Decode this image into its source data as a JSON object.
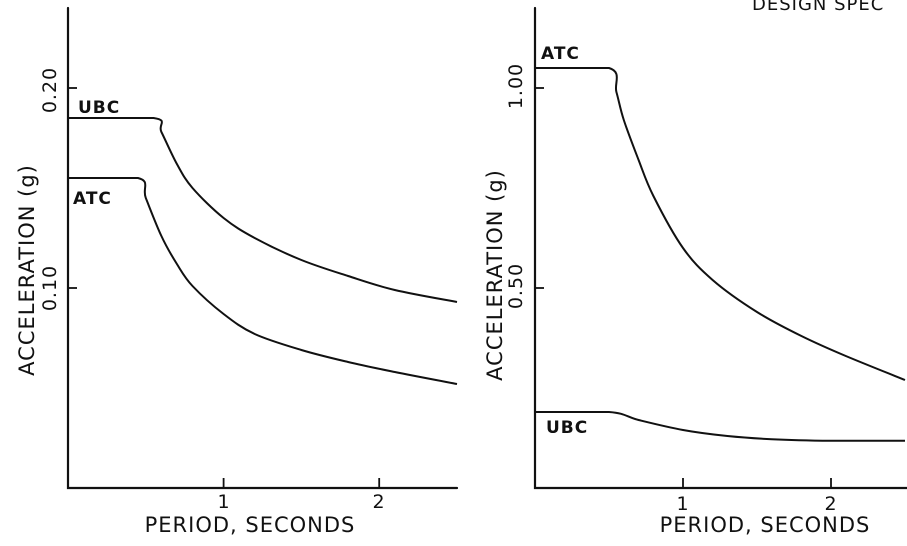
{
  "header_fragment": "DESIGN SPEC",
  "chart_data": [
    {
      "type": "line",
      "xlabel": "PERIOD, SECONDS",
      "ylabel": "ACCELERATION (g)",
      "xlim": [
        0,
        2.5
      ],
      "ylim": [
        0,
        0.25
      ],
      "xticks": [
        {
          "v": 1,
          "label": "1"
        },
        {
          "v": 2,
          "label": "2"
        }
      ],
      "yticks": [
        {
          "v": 0.1,
          "label": "0.10"
        },
        {
          "v": 0.2,
          "label": "0.20"
        }
      ],
      "series": [
        {
          "name": "UBC",
          "x": [
            0,
            0.55,
            0.6,
            0.7,
            0.8,
            1.0,
            1.2,
            1.5,
            1.8,
            2.1,
            2.5
          ],
          "y": [
            0.185,
            0.185,
            0.178,
            0.162,
            0.15,
            0.135,
            0.125,
            0.114,
            0.106,
            0.099,
            0.093
          ]
        },
        {
          "name": "ATC",
          "x": [
            0,
            0.45,
            0.5,
            0.6,
            0.7,
            0.8,
            1.0,
            1.2,
            1.5,
            1.8,
            2.1,
            2.5
          ],
          "y": [
            0.155,
            0.155,
            0.145,
            0.126,
            0.112,
            0.101,
            0.087,
            0.077,
            0.069,
            0.063,
            0.058,
            0.052
          ]
        }
      ]
    },
    {
      "type": "line",
      "xlabel": "PERIOD, SECONDS",
      "ylabel": "ACCELERATION (g)",
      "xlim": [
        0,
        2.5
      ],
      "ylim": [
        0,
        1.2
      ],
      "xticks": [
        {
          "v": 1,
          "label": "1"
        },
        {
          "v": 2,
          "label": "2"
        }
      ],
      "yticks": [
        {
          "v": 0.5,
          "label": "0.50"
        },
        {
          "v": 1.0,
          "label": "1.00"
        }
      ],
      "series": [
        {
          "name": "ATC",
          "x": [
            0,
            0.5,
            0.55,
            0.6,
            0.7,
            0.8,
            1.0,
            1.2,
            1.5,
            1.8,
            2.1,
            2.5
          ],
          "y": [
            1.05,
            1.05,
            0.99,
            0.92,
            0.82,
            0.73,
            0.6,
            0.52,
            0.44,
            0.38,
            0.33,
            0.27
          ]
        },
        {
          "name": "UBC",
          "x": [
            0,
            0.5,
            0.7,
            1.0,
            1.3,
            1.6,
            2.0,
            2.5
          ],
          "y": [
            0.19,
            0.19,
            0.17,
            0.145,
            0.13,
            0.122,
            0.118,
            0.118
          ]
        }
      ]
    }
  ]
}
